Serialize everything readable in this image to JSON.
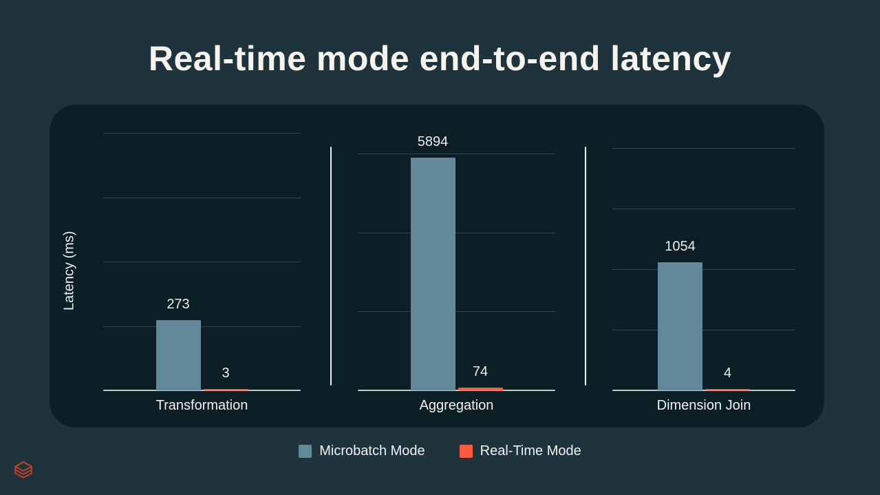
{
  "slide": {
    "title": "Real-time mode end-to-end latency",
    "background_color": "#1E333C",
    "panel_color": "#0C1F27"
  },
  "chart_data": {
    "type": "bar",
    "title": "Real-time mode end-to-end latency",
    "xlabel": "",
    "ylabel": "Latency (ms)",
    "categories": [
      "Transformation",
      "Aggregation",
      "Dimension Join"
    ],
    "series": [
      {
        "name": "Microbatch Mode",
        "color": "#61899A",
        "values": [
          273,
          5894,
          1054
        ]
      },
      {
        "name": "Real-Time Mode",
        "color": "#FB5B3D",
        "values": [
          3,
          74,
          4
        ]
      }
    ],
    "value_labels": [
      [
        "273",
        "3"
      ],
      [
        "5894",
        "74"
      ],
      [
        "1054",
        "4"
      ]
    ],
    "facet_axes": [
      {
        "category": "Transformation",
        "ylim": [
          0,
          1000
        ],
        "gridline_step": 250
      },
      {
        "category": "Aggregation",
        "ylim": [
          0,
          6000
        ],
        "gridline_step": 2000
      },
      {
        "category": "Dimension Join",
        "ylim": [
          0,
          2000
        ],
        "gridline_step": 500
      }
    ],
    "grid": true,
    "legend_position": "bottom",
    "gridline_color": "#33474F",
    "axis_line_color": "#C2CACD"
  },
  "legend": {
    "items": [
      {
        "label": "Microbatch Mode",
        "color": "#61899A"
      },
      {
        "label": "Real-Time Mode",
        "color": "#FB5B3D"
      }
    ]
  },
  "footer": {
    "logo": "databricks-logo",
    "logo_color": "#C6402B"
  }
}
